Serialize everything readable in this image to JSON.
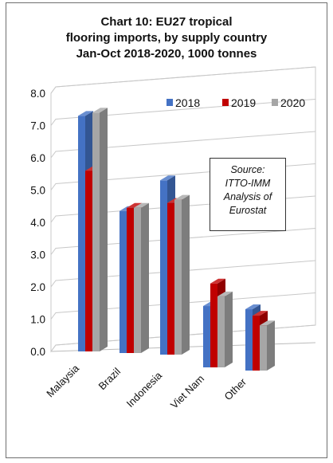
{
  "chart_data": {
    "type": "bar",
    "title": "Chart 10: EU27 tropical\nflooring imports, by supply country\nJan-Oct 2018-2020, 1000 tonnes",
    "categories": [
      "Malaysia",
      "Brazil",
      "Indonesia",
      "Viet Nam",
      "Other"
    ],
    "series": [
      {
        "name": "2018",
        "values": [
          7.3,
          4.4,
          5.4,
          1.9,
          1.9
        ],
        "color": "#4472C4"
      },
      {
        "name": "2019",
        "values": [
          5.6,
          4.5,
          4.7,
          2.6,
          1.7
        ],
        "color": "#C00000"
      },
      {
        "name": "2020",
        "values": [
          7.4,
          4.5,
          4.8,
          2.2,
          1.4
        ],
        "color": "#A6A6A6"
      }
    ],
    "y_ticks": [
      "0.0",
      "1.0",
      "2.0",
      "3.0",
      "4.0",
      "5.0",
      "6.0",
      "7.0",
      "8.0"
    ],
    "ylim": [
      0,
      8
    ],
    "grid": true,
    "legend_position": "top-right",
    "style": "3d-clustered-column"
  },
  "annotation": {
    "lines": [
      "Source:",
      "ITTO-IMM",
      "Analysis of",
      "Eurostat"
    ]
  }
}
